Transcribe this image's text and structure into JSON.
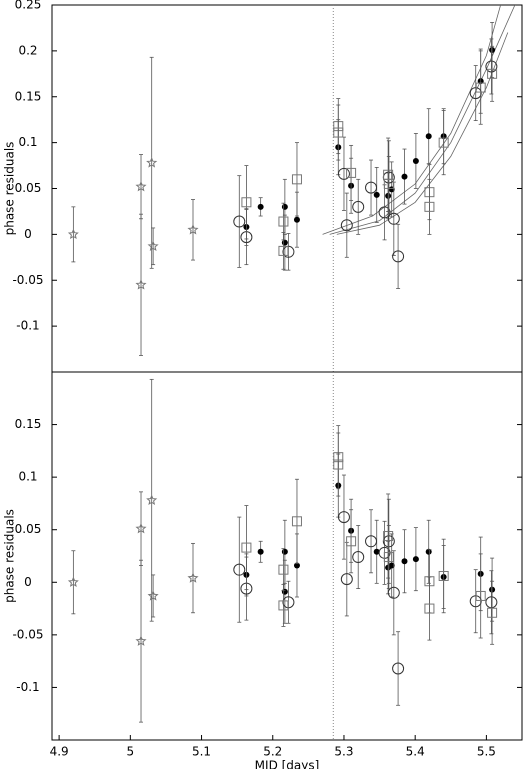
{
  "chart_data": [
    {
      "type": "scatter",
      "ylabel": "phase residuals",
      "xlim": [
        4.89,
        5.55
      ],
      "ylim": [
        -0.15,
        0.25
      ],
      "yticks": [
        -0.1,
        -0.05,
        0,
        0.05,
        0.1,
        0.15,
        0.2,
        0.25
      ],
      "vline": 5.285,
      "series": [
        {
          "marker": "star",
          "color": "#777777",
          "x": [
            4.92,
            5.015,
            5.015,
            5.03,
            5.032,
            5.088
          ],
          "values": [
            0,
            0.052,
            -0.055,
            0.078,
            -0.013,
            0.005
          ],
          "errors": [
            0.03,
            0.035,
            0.077,
            0.115,
            0.02,
            0.033
          ]
        },
        {
          "marker": "dot",
          "color": "#000000",
          "x": [
            5.163,
            5.183,
            5.217,
            5.217,
            5.234,
            5.292,
            5.31,
            5.346,
            5.362,
            5.367,
            5.385,
            5.401,
            5.419,
            5.44,
            5.492,
            5.508
          ],
          "values": [
            0.008,
            0.03,
            0.03,
            -0.009,
            0.016,
            0.095,
            0.053,
            0.043,
            0.042,
            0.049,
            0.063,
            0.08,
            0.107,
            0.107,
            0.167,
            0.201
          ],
          "errors": [
            0.02,
            0.01,
            0.03,
            0.03,
            0.03,
            0.03,
            0.03,
            0.03,
            0.025,
            0.03,
            0.03,
            0.03,
            0.03,
            0.03,
            0.035,
            0.03
          ]
        },
        {
          "marker": "circle",
          "color": "#333333",
          "x": [
            5.153,
            5.163,
            5.222,
            5.3,
            5.304,
            5.32,
            5.338,
            5.357,
            5.363,
            5.37,
            5.376,
            5.485,
            5.507
          ],
          "values": [
            0.014,
            -0.003,
            -0.019,
            0.066,
            0.01,
            0.03,
            0.051,
            0.024,
            0.062,
            0.017,
            -0.024,
            0.154,
            0.183
          ],
          "errors": [
            0.05,
            0.03,
            0.02,
            0.04,
            0.035,
            0.03,
            0.03,
            0.03,
            0.04,
            0.04,
            0.035,
            0.03,
            0.03
          ]
        },
        {
          "marker": "square",
          "color": "#777777",
          "x": [
            5.163,
            5.215,
            5.215,
            5.234,
            5.292,
            5.292,
            5.31,
            5.362,
            5.363,
            5.42,
            5.42,
            5.44,
            5.492,
            5.508
          ],
          "values": [
            0.035,
            0.014,
            -0.018,
            0.06,
            0.118,
            0.111,
            0.067,
            0.065,
            0.055,
            0.046,
            0.03,
            0.1,
            0.16,
            0.175
          ],
          "errors": [
            0.04,
            0.02,
            0.02,
            0.04,
            0.03,
            0.03,
            0.03,
            0.04,
            0.03,
            0.03,
            0.03,
            0.035,
            0.04,
            0.03
          ]
        }
      ],
      "curves": [
        {
          "x": [
            5.29,
            5.35,
            5.4,
            5.45,
            5.5,
            5.53
          ],
          "values": [
            0,
            0.01,
            0.035,
            0.085,
            0.16,
            0.22
          ]
        },
        {
          "x": [
            5.28,
            5.35,
            5.4,
            5.45,
            5.5,
            5.54
          ],
          "values": [
            0,
            0.015,
            0.045,
            0.1,
            0.18,
            0.25
          ]
        },
        {
          "x": [
            5.27,
            5.34,
            5.4,
            5.45,
            5.5,
            5.52
          ],
          "values": [
            0,
            0.02,
            0.055,
            0.11,
            0.195,
            0.25
          ]
        }
      ]
    },
    {
      "type": "scatter",
      "ylabel": "phase residuals",
      "xlabel": "MJD [days]",
      "xlim": [
        4.89,
        5.55
      ],
      "ylim": [
        -0.15,
        0.2
      ],
      "xticks": [
        4.9,
        5,
        5.1,
        5.2,
        5.3,
        5.4,
        5.5
      ],
      "yticks": [
        -0.1,
        -0.05,
        0,
        0.05,
        0.1,
        0.15
      ],
      "vline": 5.285,
      "series": [
        {
          "marker": "star",
          "color": "#777777",
          "x": [
            4.92,
            5.015,
            5.015,
            5.03,
            5.032,
            5.088
          ],
          "values": [
            0,
            0.051,
            -0.056,
            0.078,
            -0.013,
            0.004
          ],
          "errors": [
            0.03,
            0.035,
            0.077,
            0.115,
            0.02,
            0.033
          ]
        },
        {
          "marker": "dot",
          "color": "#000000",
          "x": [
            5.163,
            5.183,
            5.217,
            5.217,
            5.234,
            5.292,
            5.31,
            5.346,
            5.362,
            5.367,
            5.385,
            5.401,
            5.419,
            5.44,
            5.492,
            5.508
          ],
          "values": [
            0.007,
            0.029,
            0.029,
            -0.009,
            0.016,
            0.092,
            0.049,
            0.029,
            0.014,
            0.016,
            0.02,
            0.022,
            0.029,
            0.005,
            0.008,
            -0.007
          ],
          "errors": [
            0.02,
            0.01,
            0.03,
            0.03,
            0.03,
            0.03,
            0.03,
            0.03,
            0.025,
            0.03,
            0.03,
            0.03,
            0.03,
            0.03,
            0.035,
            0.03
          ]
        },
        {
          "marker": "circle",
          "color": "#333333",
          "x": [
            5.153,
            5.163,
            5.222,
            5.3,
            5.304,
            5.32,
            5.338,
            5.357,
            5.363,
            5.37,
            5.376,
            5.485,
            5.507
          ],
          "values": [
            0.012,
            -0.006,
            -0.019,
            0.062,
            0.003,
            0.024,
            0.039,
            0.028,
            0.039,
            -0.01,
            -0.082,
            -0.018,
            -0.019
          ],
          "errors": [
            0.05,
            0.03,
            0.02,
            0.04,
            0.035,
            0.03,
            0.03,
            0.03,
            0.04,
            0.04,
            0.035,
            0.03,
            0.03
          ]
        },
        {
          "marker": "square",
          "color": "#777777",
          "x": [
            5.163,
            5.215,
            5.215,
            5.234,
            5.292,
            5.292,
            5.31,
            5.362,
            5.363,
            5.42,
            5.42,
            5.44,
            5.492,
            5.508
          ],
          "values": [
            0.033,
            0.012,
            -0.022,
            0.058,
            0.119,
            0.112,
            0.039,
            0.044,
            0.024,
            0.001,
            -0.025,
            0.006,
            -0.013,
            -0.029
          ],
          "errors": [
            0.04,
            0.02,
            0.02,
            0.04,
            0.03,
            0.03,
            0.03,
            0.04,
            0.03,
            0.03,
            0.03,
            0.035,
            0.04,
            0.03
          ]
        }
      ]
    }
  ]
}
